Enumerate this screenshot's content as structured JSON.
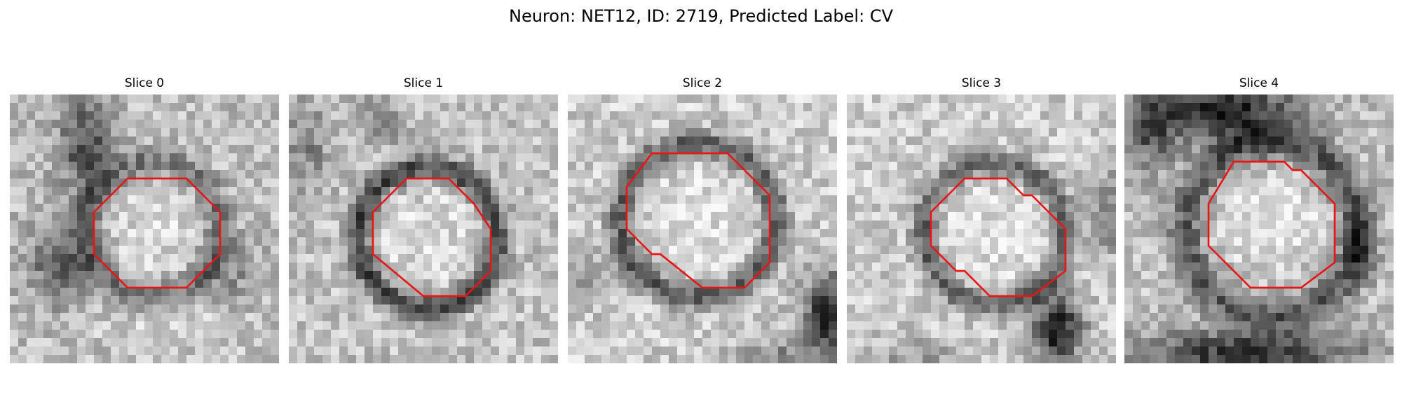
{
  "figure": {
    "title": "Neuron: NET12, ID: 2719, Predicted Label: CV",
    "colormap": "grayscale",
    "grid_size": 32,
    "contour_color": "#e81515"
  },
  "panels": [
    {
      "title": "Slice 0",
      "background": "mixed grey noise, dark band upper-left, dark lower-left",
      "contour": [
        [
          14,
          10
        ],
        [
          21,
          10
        ],
        [
          25,
          14
        ],
        [
          25,
          19
        ],
        [
          21,
          23
        ],
        [
          14,
          23
        ],
        [
          10,
          19
        ],
        [
          10,
          14
        ]
      ]
    },
    {
      "title": "Slice 1",
      "background": "light grey noise, dark ring around center",
      "contour": [
        [
          14,
          10
        ],
        [
          19,
          10
        ],
        [
          22,
          13
        ],
        [
          24,
          16
        ],
        [
          24,
          21
        ],
        [
          21,
          24
        ],
        [
          16,
          24
        ],
        [
          10,
          19
        ],
        [
          10,
          14
        ]
      ]
    },
    {
      "title": "Slice 2",
      "background": "light grey noise, dark ring, dark corner lower-right",
      "contour": [
        [
          10,
          7
        ],
        [
          19,
          7
        ],
        [
          24,
          12
        ],
        [
          24,
          20
        ],
        [
          21,
          23
        ],
        [
          16,
          23
        ],
        [
          11,
          19
        ],
        [
          10,
          19
        ],
        [
          7,
          16
        ],
        [
          7,
          11
        ]
      ]
    },
    {
      "title": "Slice 3",
      "background": "light grey noise, dark ring, dark lower-right",
      "contour": [
        [
          14,
          10
        ],
        [
          19,
          10
        ],
        [
          21,
          12
        ],
        [
          22,
          12
        ],
        [
          26,
          16
        ],
        [
          26,
          21
        ],
        [
          22,
          24
        ],
        [
          17,
          24
        ],
        [
          14,
          21
        ],
        [
          13,
          21
        ],
        [
          10,
          18
        ],
        [
          10,
          14
        ]
      ]
    },
    {
      "title": "Slice 4",
      "background": "dark upper border, light center, dark lower band",
      "contour": [
        [
          13,
          8
        ],
        [
          19,
          8
        ],
        [
          20,
          9
        ],
        [
          21,
          9
        ],
        [
          25,
          13
        ],
        [
          25,
          20
        ],
        [
          21,
          23
        ],
        [
          15,
          23
        ],
        [
          10,
          18
        ],
        [
          10,
          13
        ]
      ]
    }
  ]
}
